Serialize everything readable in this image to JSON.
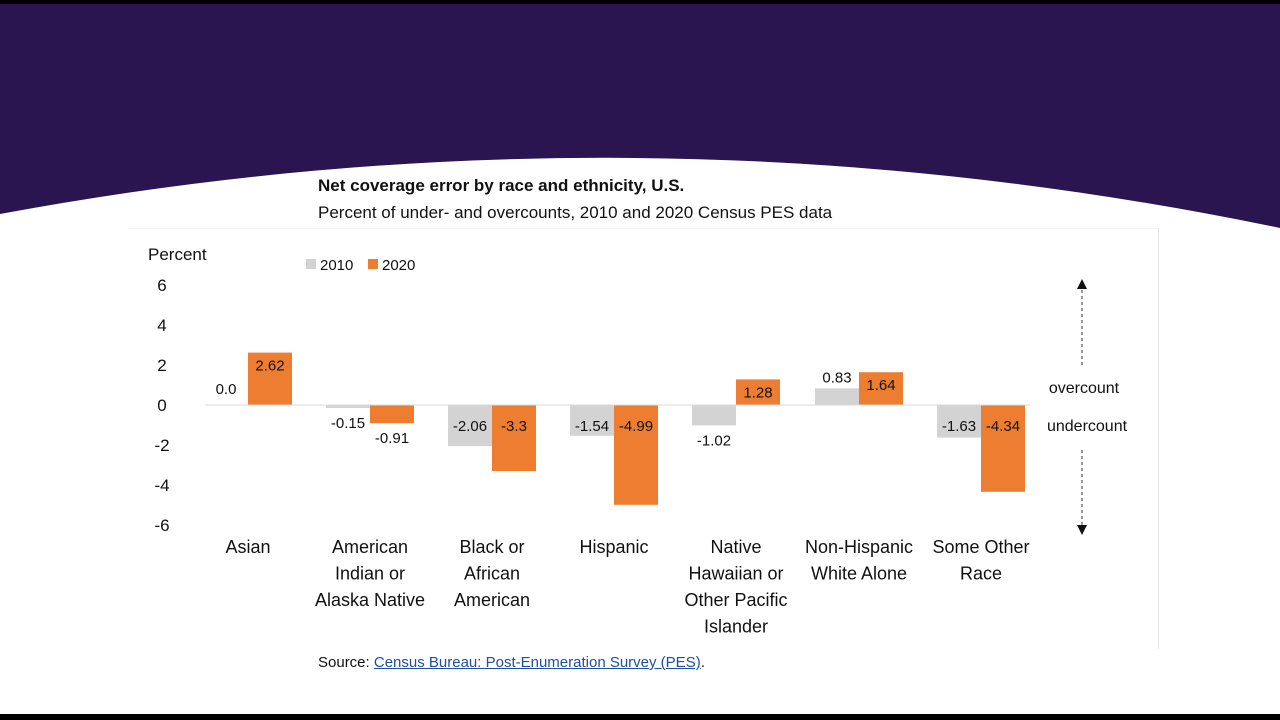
{
  "colors": {
    "header_band": "#2a1550",
    "series_2010": "#d3d3d3",
    "series_2020": "#ed7d31",
    "link": "#1f4fa0"
  },
  "chart_data": {
    "type": "bar",
    "title": "Net coverage error by race and ethnicity, U.S.",
    "subtitle": "Percent of under- and overcounts,  2010 and 2020 Census PES data",
    "ylabel": "Percent",
    "ylim": [
      -6,
      6
    ],
    "yticks": [
      "6",
      "4",
      "2",
      "0",
      "-2",
      "-4",
      "-6"
    ],
    "ytick_values": [
      6,
      4,
      2,
      0,
      -2,
      -4,
      -6
    ],
    "legend_position": "top-left",
    "categories": [
      [
        "Asian"
      ],
      [
        "American",
        "Indian or",
        "Alaska Native"
      ],
      [
        "Black or",
        "African",
        "American"
      ],
      [
        "Hispanic"
      ],
      [
        "Native",
        "Hawaiian or",
        "Other Pacific",
        "Islander"
      ],
      [
        "Non-Hispanic",
        "White Alone"
      ],
      [
        "Some Other",
        "Race"
      ]
    ],
    "series": [
      {
        "name": "2010",
        "values": [
          0.0,
          -0.15,
          -2.06,
          -1.54,
          -1.02,
          0.83,
          -1.63
        ],
        "labels": [
          "0.0",
          "-0.15",
          "-2.06",
          "-1.54",
          "-1.02",
          "0.83",
          "-1.63"
        ]
      },
      {
        "name": "2020",
        "values": [
          2.62,
          -0.91,
          -3.3,
          -4.99,
          1.28,
          1.64,
          -4.34
        ],
        "labels": [
          "2.62",
          "-0.91",
          "-3.3",
          "-4.99",
          "1.28",
          "1.64",
          "-4.34"
        ]
      }
    ],
    "annotations": {
      "overcount": "overcount",
      "undercount": "undercount"
    }
  },
  "source": {
    "prefix": "Source: ",
    "link_text": "Census Bureau: Post-Enumeration Survey (PES)",
    "suffix": "."
  }
}
